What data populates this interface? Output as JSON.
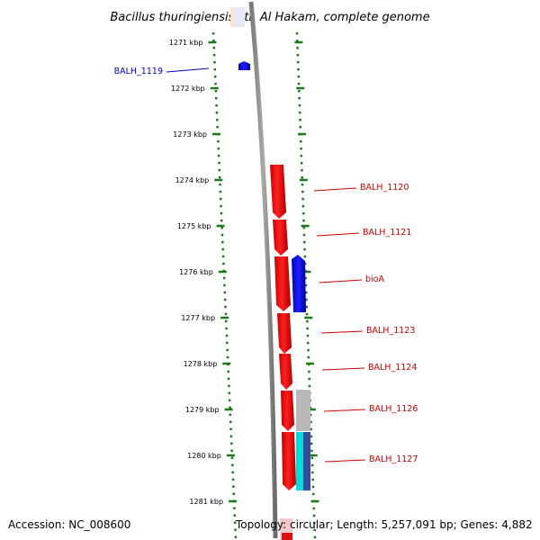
{
  "title": "Bacillus thuringiensis str. Al Hakam, complete genome",
  "footer": {
    "accession": "Accession: NC_008600",
    "topology": "Topology: circular; Length: 5,257,091 bp; Genes: 4,882"
  },
  "ticks": [
    {
      "kbp": 1271,
      "label": "1271 kbp"
    },
    {
      "kbp": 1272,
      "label": "1272 kbp"
    },
    {
      "kbp": 1273,
      "label": "1273 kbp"
    },
    {
      "kbp": 1274,
      "label": "1274 kbp"
    },
    {
      "kbp": 1275,
      "label": "1275 kbp"
    },
    {
      "kbp": 1276,
      "label": "1276 kbp"
    },
    {
      "kbp": 1277,
      "label": "1277 kbp"
    },
    {
      "kbp": 1278,
      "label": "1278 kbp"
    },
    {
      "kbp": 1279,
      "label": "1279 kbp"
    },
    {
      "kbp": 1280,
      "label": "1280 kbp"
    },
    {
      "kbp": 1281,
      "label": "1281 kbp"
    }
  ],
  "genes": [
    {
      "name": "BALH_1119",
      "side": "left",
      "color": "#0000cc",
      "track": "reverse"
    },
    {
      "name": "BALH_1120",
      "side": "right",
      "color": "#cc0000",
      "track": "forward"
    },
    {
      "name": "BALH_1121",
      "side": "right",
      "color": "#cc0000",
      "track": "forward"
    },
    {
      "name": "bioA",
      "side": "right",
      "color": "#cc0000",
      "track": "reverse"
    },
    {
      "name": "BALH_1123",
      "side": "right",
      "color": "#cc0000",
      "track": "forward"
    },
    {
      "name": "BALH_1124",
      "side": "right",
      "color": "#cc0000",
      "track": "forward"
    },
    {
      "name": "BALH_1126",
      "side": "right",
      "color": "#cc0000",
      "track": "forward"
    },
    {
      "name": "BALH_1127",
      "side": "right",
      "color": "#cc0000",
      "track": "forward"
    }
  ],
  "colors": {
    "forward_gene": "#ee1111",
    "reverse_gene": "#1111dd",
    "backbone": "#808080",
    "tick_mark": "#1a7a1a",
    "overlay_gray": "#b8b8b8",
    "overlay_cyan": "#00dddd",
    "overlay_navy": "#3a4a9a"
  }
}
